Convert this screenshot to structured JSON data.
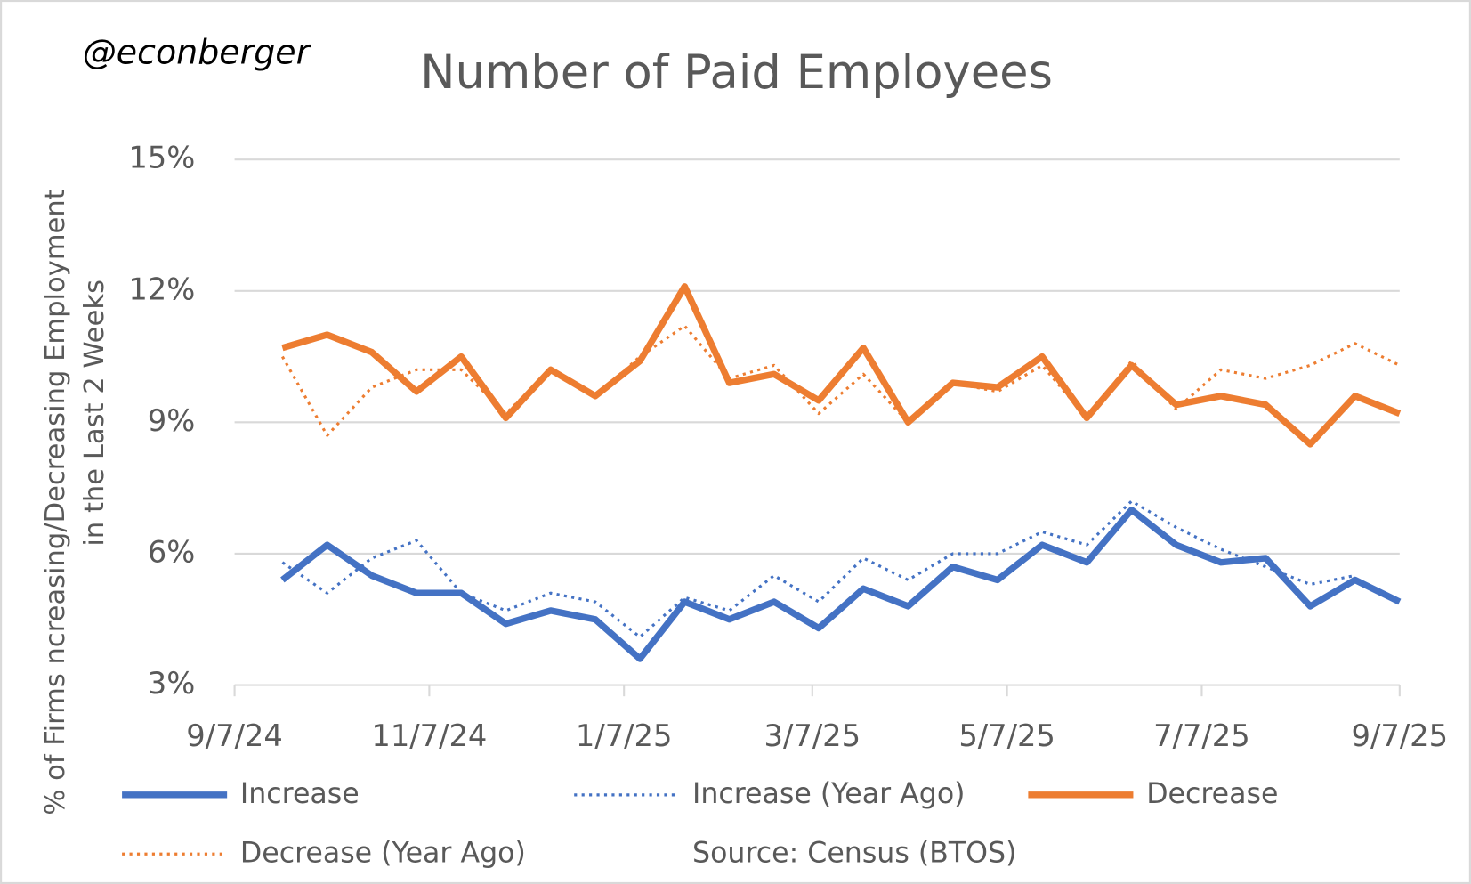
{
  "chart_data": {
    "type": "line",
    "title": "Number of Paid Employees",
    "annotations": [
      "@econberger",
      "Source: Census (BTOS)"
    ],
    "ylabel": [
      "% of Firms ncreasing/Decreasing Employment",
      "in the Last 2 Weeks"
    ],
    "x": [
      "2024-09-22",
      "2024-10-06",
      "2024-10-20",
      "2024-11-03",
      "2024-11-17",
      "2024-12-01",
      "2024-12-15",
      "2024-12-29",
      "2025-01-12",
      "2025-01-26",
      "2025-02-09",
      "2025-02-23",
      "2025-03-09",
      "2025-03-23",
      "2025-04-06",
      "2025-04-20",
      "2025-05-04",
      "2025-05-18",
      "2025-06-01",
      "2025-06-15",
      "2025-06-29",
      "2025-07-13",
      "2025-07-27",
      "2025-08-10",
      "2025-08-24",
      "2025-09-07"
    ],
    "series": [
      {
        "name": "Increase",
        "color": "#4472c4",
        "style": "solid",
        "values": [
          5.4,
          6.2,
          5.5,
          5.1,
          5.1,
          4.4,
          4.7,
          4.5,
          3.6,
          4.9,
          4.5,
          4.9,
          4.3,
          5.2,
          4.8,
          5.7,
          5.4,
          6.2,
          5.8,
          7.0,
          6.2,
          5.8,
          5.9,
          4.8,
          5.4,
          4.9
        ]
      },
      {
        "name": "Increase (Year Ago)",
        "color": "#4472c4",
        "style": "dotted",
        "values": [
          5.8,
          5.1,
          5.9,
          6.3,
          5.1,
          4.7,
          5.1,
          4.9,
          4.1,
          5.0,
          4.7,
          5.5,
          4.9,
          5.9,
          5.4,
          6.0,
          6.0,
          6.5,
          6.2,
          7.2,
          6.6,
          6.1,
          5.7,
          5.3,
          5.5,
          null
        ]
      },
      {
        "name": "Decrease",
        "color": "#ed7d31",
        "style": "solid",
        "values": [
          10.7,
          11.0,
          10.6,
          9.7,
          10.5,
          9.1,
          10.2,
          9.6,
          10.4,
          12.1,
          9.9,
          10.1,
          9.5,
          10.7,
          9.0,
          9.9,
          9.8,
          10.5,
          9.1,
          10.3,
          9.4,
          9.6,
          9.4,
          8.5,
          9.6,
          9.2
        ]
      },
      {
        "name": "Decrease (Year Ago)",
        "color": "#ed7d31",
        "style": "dotted",
        "values": [
          10.5,
          8.7,
          9.8,
          10.2,
          10.2,
          9.2,
          10.2,
          9.6,
          10.5,
          11.2,
          10.0,
          10.3,
          9.2,
          10.1,
          9.0,
          9.9,
          9.7,
          10.3,
          9.1,
          10.4,
          9.3,
          10.2,
          10.0,
          10.3,
          10.8,
          10.3
        ]
      }
    ],
    "xlim": [
      "2024-09-07",
      "2025-09-07"
    ],
    "xticks": [
      {
        "value": "2024-09-07",
        "label": "9/7/24"
      },
      {
        "value": "2024-11-07",
        "label": "11/7/24"
      },
      {
        "value": "2025-01-07",
        "label": "1/7/25"
      },
      {
        "value": "2025-03-07",
        "label": "3/7/25"
      },
      {
        "value": "2025-05-07",
        "label": "5/7/25"
      },
      {
        "value": "2025-07-07",
        "label": "7/7/25"
      },
      {
        "value": "2025-09-07",
        "label": "9/7/25"
      }
    ],
    "ylim": [
      3,
      15
    ],
    "yticks": [
      {
        "value": 3,
        "label": "3%"
      },
      {
        "value": 6,
        "label": "6%"
      },
      {
        "value": 9,
        "label": "9%"
      },
      {
        "value": 12,
        "label": "12%"
      },
      {
        "value": 15,
        "label": "15%"
      }
    ],
    "grid": true,
    "legend": "bottom"
  }
}
